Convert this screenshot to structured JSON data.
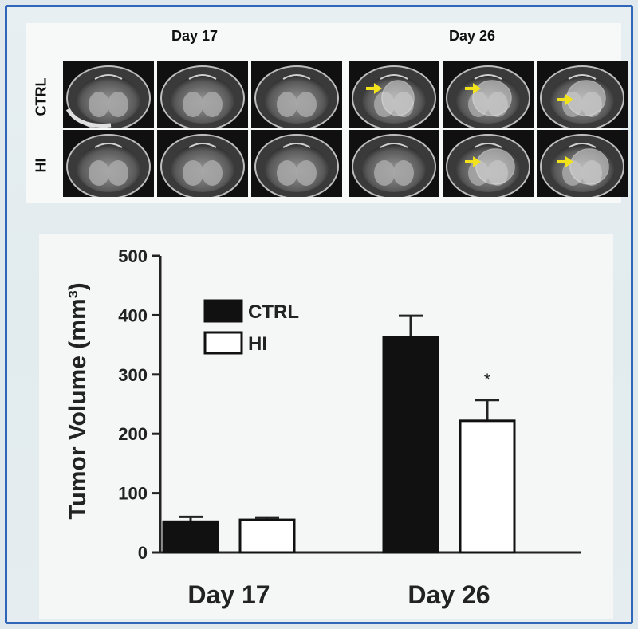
{
  "mri": {
    "columns": [
      "Day 17",
      "Day 26"
    ],
    "rows": [
      "CTRL",
      "HI"
    ],
    "arrow_color": "#f2e21c"
  },
  "chart_data": {
    "type": "bar",
    "categories": [
      "Day 17",
      "Day 26"
    ],
    "series": [
      {
        "name": "CTRL",
        "values": [
          52,
          363
        ],
        "errors": [
          8,
          36
        ],
        "fill": "#111111"
      },
      {
        "name": "HI",
        "values": [
          55,
          222
        ],
        "errors": [
          4,
          35
        ],
        "fill": "#ffffff"
      }
    ],
    "ylabel": "Tumor Volume (mm³)",
    "ylim": [
      0,
      500
    ],
    "yticks": [
      "0",
      "100",
      "200",
      "300",
      "400",
      "500"
    ],
    "annotations": [
      {
        "text": "*",
        "category": "Day 26",
        "series": "HI"
      }
    ],
    "legend_placement": "top-left",
    "grid": false
  }
}
